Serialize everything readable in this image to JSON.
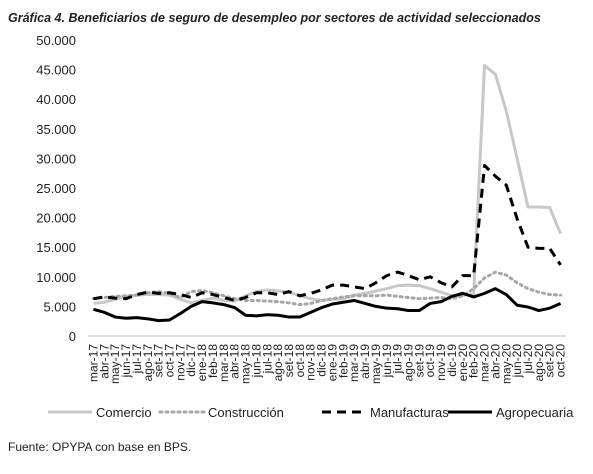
{
  "chart_data": {
    "type": "line",
    "title": "Gráfica 4. Beneficiarios de seguro de desempleo por sectores de actividad seleccionados",
    "source": "Fuente: OPYPA con base en BPS.",
    "categories": [
      "mar-17",
      "abr-17",
      "may-17",
      "jun-17",
      "jul-17",
      "ago-17",
      "set-17",
      "oct-17",
      "nov-17",
      "dic-17",
      "ene-18",
      "feb-18",
      "mar-18",
      "abr-18",
      "may-18",
      "jun-18",
      "jul-18",
      "ago-18",
      "set-18",
      "oct-18",
      "nov-18",
      "dic-18",
      "ene-19",
      "feb-19",
      "mar-19",
      "abr-19",
      "may-19",
      "jun-19",
      "jul-19",
      "ago-19",
      "set-19",
      "oct-19",
      "nov-19",
      "dic-19",
      "ene-20",
      "feb-20",
      "mar-20",
      "abr-20",
      "may-20",
      "jun-20",
      "jul-20",
      "ago-20",
      "set-20",
      "oct-20"
    ],
    "series": [
      {
        "name": "Comercio",
        "color": "#c8c8c8",
        "style": "solid",
        "width": 3,
        "values": [
          5500,
          5700,
          6200,
          6700,
          6900,
          7000,
          7000,
          6900,
          6200,
          5600,
          6000,
          6400,
          6000,
          5900,
          6800,
          7500,
          7800,
          7600,
          7400,
          6800,
          6300,
          6000,
          6200,
          6300,
          6900,
          7200,
          7600,
          8000,
          8500,
          8600,
          8500,
          8000,
          7400,
          6800,
          6900,
          7000,
          45700,
          44200,
          38000,
          30000,
          21800,
          21800,
          21700,
          17300
        ]
      },
      {
        "name": "Construcción",
        "color": "#a6a6a6",
        "style": "dotted",
        "width": 3,
        "values": [
          6300,
          6500,
          6700,
          6800,
          6900,
          7300,
          7500,
          7200,
          6500,
          7500,
          7700,
          7300,
          6800,
          6300,
          6000,
          6000,
          5900,
          5800,
          5600,
          5300,
          5500,
          6000,
          6300,
          6600,
          6800,
          6800,
          6800,
          6900,
          6700,
          6500,
          6300,
          6400,
          6500,
          6300,
          6800,
          8000,
          9800,
          10800,
          10300,
          9000,
          8000,
          7400,
          7000,
          6900
        ]
      },
      {
        "name": "Manufacturas",
        "color": "#000000",
        "style": "dashed",
        "width": 3,
        "values": [
          6300,
          6600,
          6400,
          6300,
          7000,
          7400,
          7200,
          7300,
          7000,
          6500,
          7300,
          7000,
          6500,
          6000,
          6500,
          7300,
          7300,
          7000,
          7500,
          6800,
          7200,
          7800,
          8600,
          8600,
          8300,
          8000,
          9000,
          10200,
          10800,
          10200,
          9500,
          10000,
          9000,
          8300,
          10200,
          10200,
          28800,
          27000,
          25500,
          19800,
          15000,
          14800,
          14800,
          12000
        ]
      },
      {
        "name": "Agropecuaria",
        "color": "#000000",
        "style": "solid",
        "width": 3,
        "values": [
          4500,
          4000,
          3200,
          3000,
          3100,
          2900,
          2600,
          2700,
          3800,
          5000,
          5800,
          5600,
          5300,
          4800,
          3500,
          3400,
          3600,
          3500,
          3200,
          3200,
          4000,
          4800,
          5400,
          5700,
          6000,
          5500,
          5000,
          4700,
          4600,
          4300,
          4300,
          5500,
          5800,
          6700,
          7200,
          6600,
          7200,
          8000,
          7000,
          5200,
          4900,
          4300,
          4700,
          5500
        ]
      }
    ],
    "ylim": [
      0,
      50000
    ],
    "yticks": [
      0,
      {
        "value": 5000,
        "label": "5.000"
      },
      {
        "value": 10000,
        "label": "10.000"
      },
      {
        "value": 15000,
        "label": "15.000"
      },
      {
        "value": 20000,
        "label": "20.000"
      },
      {
        "value": 25000,
        "label": "25.000"
      },
      {
        "value": 30000,
        "label": "30.000"
      },
      {
        "value": 35000,
        "label": "35.000"
      },
      {
        "value": 40000,
        "label": "40.000"
      },
      {
        "value": 45000,
        "label": "45.000"
      },
      {
        "value": 50000,
        "label": "50.000"
      }
    ],
    "grid": false,
    "legend": "bottom"
  }
}
